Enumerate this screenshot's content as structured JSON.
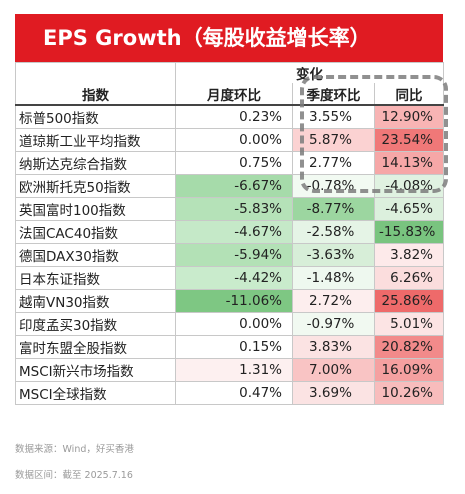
{
  "title": "EPS Growth（每股收益增长率）",
  "table": {
    "group_header": "变化",
    "headers": [
      "指数",
      "月度环比",
      "季度环比",
      "同比"
    ],
    "rows": [
      {
        "name": "标普500指数",
        "mom": "0.23%",
        "qoq": "3.55%",
        "yoy": "12.90%",
        "bg": [
          "#ffffff",
          "#ffffff",
          "#f8b4b4"
        ]
      },
      {
        "name": "道琼斯工业平均指数",
        "mom": "0.00%",
        "qoq": "5.87%",
        "yoy": "23.54%",
        "bg": [
          "#ffffff",
          "#fbd2d2",
          "#f07878"
        ]
      },
      {
        "name": "纳斯达克综合指数",
        "mom": "0.75%",
        "qoq": "2.77%",
        "yoy": "14.13%",
        "bg": [
          "#ffffff",
          "#ffffff",
          "#f6a7a7"
        ]
      },
      {
        "name": "欧洲斯托克50指数",
        "mom": "-6.67%",
        "qoq": "-0.78%",
        "yoy": "-4.08%",
        "bg": [
          "#a6dbaa",
          "#f2faf2",
          "#e0f2e1"
        ]
      },
      {
        "name": "英国富时100指数",
        "mom": "-5.83%",
        "qoq": "-8.77%",
        "yoy": "-4.65%",
        "bg": [
          "#b5e2b8",
          "#9cd6a0",
          "#dcf0dd"
        ]
      },
      {
        "name": "法国CAC40指数",
        "mom": "-4.67%",
        "qoq": "-2.58%",
        "yoy": "-15.83%",
        "bg": [
          "#c5e9c8",
          "#e5f4e6",
          "#79c47f"
        ]
      },
      {
        "name": "德国DAX30指数",
        "mom": "-5.94%",
        "qoq": "-3.63%",
        "yoy": "3.82%",
        "bg": [
          "#b3e1b6",
          "#d7eed8",
          "#fdeaea"
        ]
      },
      {
        "name": "日本东证指数",
        "mom": "-4.42%",
        "qoq": "-1.48%",
        "yoy": "6.26%",
        "bg": [
          "#c9ebcc",
          "#eef8ef",
          "#fbdddd"
        ]
      },
      {
        "name": "越南VN30指数",
        "mom": "-11.06%",
        "qoq": "2.72%",
        "yoy": "25.86%",
        "bg": [
          "#7ec783",
          "#fdeeee",
          "#ee6a6a"
        ]
      },
      {
        "name": "印度孟买30指数",
        "mom": "0.00%",
        "qoq": "-0.97%",
        "yoy": "5.01%",
        "bg": [
          "#ffffff",
          "#f1f9f1",
          "#fce4e4"
        ]
      },
      {
        "name": "富时东盟全股指数",
        "mom": "0.15%",
        "qoq": "3.83%",
        "yoy": "20.82%",
        "bg": [
          "#ffffff",
          "#fbe3e3",
          "#f28a8a"
        ]
      },
      {
        "name": "MSCI新兴市场指数",
        "mom": "1.31%",
        "qoq": "7.00%",
        "yoy": "16.09%",
        "bg": [
          "#fdf0f0",
          "#f9c4c4",
          "#f5a0a0"
        ]
      },
      {
        "name": "MSCI全球指数",
        "mom": "0.47%",
        "qoq": "3.69%",
        "yoy": "10.26%",
        "bg": [
          "#ffffff",
          "#fbe3e3",
          "#f8bcbc"
        ]
      }
    ]
  },
  "footer": {
    "source": "数据来源：Wind，好买香港",
    "period": "数据区间：截至 2025.7.16"
  },
  "colors": {
    "title_bg": "#e01b22",
    "title_text": "#ffffff"
  }
}
